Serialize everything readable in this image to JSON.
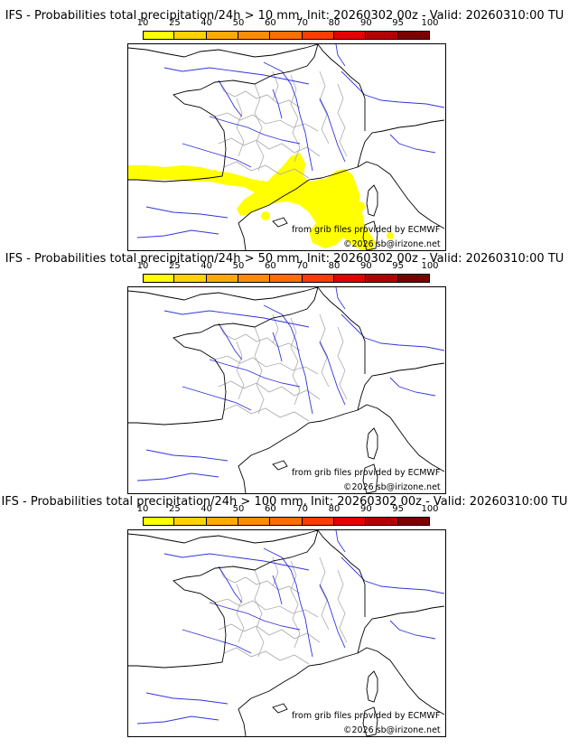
{
  "panels": [
    {
      "title": "IFS - Probabilities total precipitation/24h > 10 mm, Init: 20260302 00z - Valid: 20260310:00 TU",
      "has_precip": true
    },
    {
      "title": "IFS - Probabilities total precipitation/24h > 50 mm, Init: 20260302 00z - Valid: 20260310:00 TU",
      "has_precip": false
    },
    {
      "title": "IFS - Probabilities total precipitation/24h > 100 mm, Init: 20260302 00z - Valid: 20260310:00 TU",
      "has_precip": false
    }
  ],
  "colorbar": {
    "ticks": [
      "10",
      "25",
      "40",
      "50",
      "60",
      "70",
      "80",
      "90",
      "95",
      "100"
    ],
    "colors": [
      "#ffff00",
      "#ffd200",
      "#ffaa00",
      "#ff8c00",
      "#ff6e00",
      "#ff3c00",
      "#e60000",
      "#b40000",
      "#7d0000"
    ]
  },
  "credits": {
    "grib": "from grib files provided by ECMWF",
    "copyright": "©2026 sb@irizone.net"
  },
  "map_colors": {
    "coast": "#000000",
    "rivers": "#3333dd",
    "borders": "#aaaaaa",
    "precip": "#ffff00"
  }
}
